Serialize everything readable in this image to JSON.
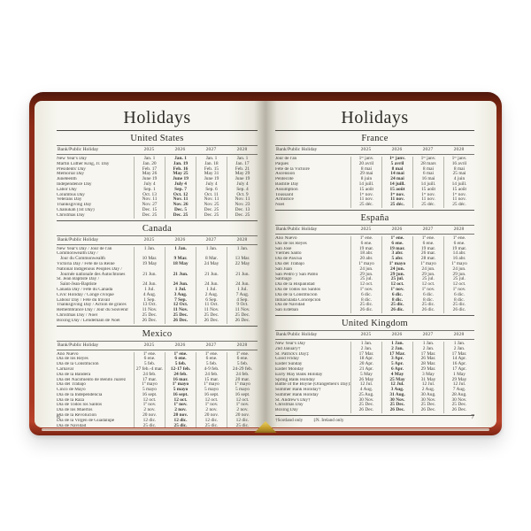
{
  "colors": {
    "cover_red": "#9c3220",
    "page_cream": "#f7f6f0",
    "gilt_gold": "#c9a22a"
  },
  "columns": {
    "name": "Bank/Public Holiday",
    "years": [
      "2025",
      "2026",
      "2027",
      "2028"
    ]
  },
  "left_page": {
    "title": "Holidays",
    "page_number": "6",
    "sections": [
      {
        "title": "United States",
        "rows": [
          {
            "name": "New Year's Day",
            "dates": [
              "Jan. 1",
              "Jan. 1",
              "Jan. 1",
              "Jan. 1"
            ]
          },
          {
            "name": "Martin Luther King, Jr. Day",
            "dates": [
              "Jan. 20",
              "Jan. 19",
              "Jan. 18",
              "Jan. 17"
            ]
          },
          {
            "name": "Presidents' Day",
            "dates": [
              "Feb. 17",
              "Feb. 16",
              "Feb. 15",
              "Feb. 21"
            ]
          },
          {
            "name": "Memorial Day",
            "dates": [
              "May 26",
              "May 25",
              "May 31",
              "May 29"
            ]
          },
          {
            "name": "Juneteenth",
            "dates": [
              "June 19",
              "June 19",
              "June 19",
              "June 19"
            ]
          },
          {
            "name": "Independence Day",
            "dates": [
              "July 4",
              "July 4",
              "July 4",
              "July 4"
            ]
          },
          {
            "name": "Labor Day",
            "dates": [
              "Sep. 1",
              "Sep. 7",
              "Sep. 6",
              "Sep. 4"
            ]
          },
          {
            "name": "Columbus Day",
            "dates": [
              "Oct. 13",
              "Oct. 12",
              "Oct. 11",
              "Oct. 9"
            ]
          },
          {
            "name": "Veterans Day",
            "dates": [
              "Nov. 11",
              "Nov. 11",
              "Nov. 11",
              "Nov. 11"
            ]
          },
          {
            "name": "Thanksgiving Day",
            "dates": [
              "Nov. 27",
              "Nov. 26",
              "Nov. 25",
              "Nov. 23"
            ]
          },
          {
            "name": "Chanukah (1st Day)",
            "dates": [
              "Dec. 15",
              "Dec. 5",
              "Dec. 25",
              "Dec. 13"
            ]
          },
          {
            "name": "Christmas Day",
            "dates": [
              "Dec. 25",
              "Dec. 25",
              "Dec. 25",
              "Dec. 25"
            ]
          }
        ]
      },
      {
        "title": "Canada",
        "rows": [
          {
            "name": "New Year's Day / Jour de l'an",
            "dates": [
              "1 Jan.",
              "1 Jan.",
              "1 Jan.",
              "1 Jan."
            ]
          },
          {
            "name": "Commonwealth Day /\nJour du Commonwealth",
            "dates": [
              "10 Mar.",
              "9 Mar.",
              "8 Mar.",
              "13 Mar."
            ]
          },
          {
            "name": "Victoria Day / Fête de la Reine",
            "dates": [
              "19 May",
              "18 May",
              "24 May",
              "22 May"
            ]
          },
          {
            "name": "National Indigenous Peoples Day /\nJournée nationale des Autochtones",
            "dates": [
              "21 Jun.",
              "21 Jun.",
              "21 Jun.",
              "21 Jun."
            ]
          },
          {
            "name": "St. Jean Baptiste Day /\nSaint-Jean-Baptiste",
            "dates": [
              "24 Jun.",
              "24 Jun.",
              "24 Jun.",
              "24 Jun."
            ]
          },
          {
            "name": "Canada Day / Fête du Canada",
            "dates": [
              "1 Jul.",
              "1 Jul.",
              "1 Jul.",
              "1 Jul."
            ]
          },
          {
            "name": "Civic Holiday / Congé civique",
            "dates": [
              "4 Aug.",
              "3 Aug.",
              "2 Aug.",
              "7 Aug."
            ]
          },
          {
            "name": "Labour Day / Fête du travail",
            "dates": [
              "1 Sep.",
              "7 Sep.",
              "6 Sep.",
              "4 Sep."
            ]
          },
          {
            "name": "Thanksgiving Day / Action de grâces",
            "dates": [
              "13 Oct.",
              "12 Oct.",
              "11 Oct.",
              "9 Oct."
            ]
          },
          {
            "name": "Remembrance Day / Jour du Souvenir",
            "dates": [
              "11 Nov.",
              "11 Nov.",
              "11 Nov.",
              "11 Nov."
            ]
          },
          {
            "name": "Christmas Day / Noël",
            "dates": [
              "25 Dec.",
              "25 Dec.",
              "25 Dec.",
              "25 Dec."
            ]
          },
          {
            "name": "Boxing Day / Lendemain de Noël",
            "dates": [
              "26 Dec.",
              "26 Dec.",
              "26 Dec.",
              "26 Dec."
            ]
          }
        ]
      },
      {
        "title": "Mexico",
        "rows": [
          {
            "name": "Año Nuevo",
            "dates": [
              "1º ene.",
              "1º ene.",
              "1º ene.",
              "1º ene."
            ]
          },
          {
            "name": "Día de los Reyes",
            "dates": [
              "6 ene.",
              "6 ene.",
              "6 ene.",
              "6 ene."
            ]
          },
          {
            "name": "Día de la Constitución",
            "dates": [
              "5 feb.",
              "5 feb.",
              "5 feb.",
              "5 feb."
            ]
          },
          {
            "name": "Carnaval",
            "dates": [
              "27 feb.-4 mar.",
              "12-17 feb.",
              "4-9 feb.",
              "24-29 feb."
            ]
          },
          {
            "name": "Día de la Bandera",
            "dates": [
              "24 feb.",
              "24 feb.",
              "24 feb.",
              "24 feb."
            ]
          },
          {
            "name": "Día del Nacimiento de Benito Juárez",
            "dates": [
              "17 mar.",
              "16 mar.",
              "15 mar.",
              "20 mar."
            ]
          },
          {
            "name": "Día del Trabajo",
            "dates": [
              "1º mayo",
              "1º mayo",
              "1º mayo",
              "1º mayo"
            ]
          },
          {
            "name": "Cinco de Mayo",
            "dates": [
              "5 mayo",
              "5 mayo",
              "5 mayo",
              "5 mayo"
            ]
          },
          {
            "name": "Día de la Independencia",
            "dates": [
              "16 sept.",
              "16 sept.",
              "16 sept.",
              "16 sept."
            ]
          },
          {
            "name": "Día de la Raza",
            "dates": [
              "12 oct.",
              "12 oct.",
              "12 oct.",
              "12 oct."
            ]
          },
          {
            "name": "Día de Todos los Santos",
            "dates": [
              "1º nov.",
              "1º nov.",
              "1º nov.",
              "1º nov."
            ]
          },
          {
            "name": "Día de los Muertos",
            "dates": [
              "2 nov.",
              "2 nov.",
              "2 nov.",
              "2 nov."
            ]
          },
          {
            "name": "Día de la Revolución",
            "dates": [
              "20 nov.",
              "20 nov.",
              "20 nov.",
              "20 nov."
            ]
          },
          {
            "name": "Día de la Virgen de Guadalupe",
            "dates": [
              "12 dic.",
              "12 dic.",
              "12 dic.",
              "12 dic."
            ]
          },
          {
            "name": "Día de Navidad",
            "dates": [
              "25 dic.",
              "25 dic.",
              "25 dic.",
              "25 dic."
            ]
          }
        ]
      }
    ]
  },
  "right_page": {
    "title": "Holidays",
    "page_number": "7",
    "footnotes": [
      "†Scotland only",
      "‡N. Ireland only"
    ],
    "sections": [
      {
        "title": "France",
        "rows": [
          {
            "name": "Jour de l'an",
            "dates": [
              "1ᵉʳ janv.",
              "1ᵉʳ janv.",
              "1ᵉʳ janv.",
              "1ᵉʳ janv."
            ]
          },
          {
            "name": "Pâques",
            "dates": [
              "20 avril",
              "5 avril",
              "28 mars",
              "16 avril"
            ]
          },
          {
            "name": "Fête de la Victoire",
            "dates": [
              "8 mai",
              "8 mai",
              "8 mai",
              "8 mai"
            ]
          },
          {
            "name": "Ascension",
            "dates": [
              "29 mai",
              "14 mai",
              "6 mai",
              "25 mai"
            ]
          },
          {
            "name": "Pentecôte",
            "dates": [
              "8 juin",
              "24 mai",
              "16 mai",
              "4 juin"
            ]
          },
          {
            "name": "Bastille Day",
            "dates": [
              "14 juill.",
              "14 juill.",
              "14 juill.",
              "14 juill."
            ]
          },
          {
            "name": "Assumption",
            "dates": [
              "15 août",
              "15 août",
              "15 août",
              "15 août"
            ]
          },
          {
            "name": "Toussaint",
            "dates": [
              "1ᵉʳ nov.",
              "1ᵉʳ nov.",
              "1ᵉʳ nov.",
              "1ᵉʳ nov."
            ]
          },
          {
            "name": "Armistice",
            "dates": [
              "11 nov.",
              "11 nov.",
              "11 nov.",
              "11 nov."
            ]
          },
          {
            "name": "Noël",
            "dates": [
              "25 déc.",
              "25 déc.",
              "25 déc.",
              "25 déc."
            ]
          }
        ]
      },
      {
        "title": "España",
        "rows": [
          {
            "name": "Año Nuevo",
            "dates": [
              "1º ene.",
              "1º ene.",
              "1º ene.",
              "1º ene."
            ]
          },
          {
            "name": "Día de los Reyes",
            "dates": [
              "6 ene.",
              "6 ene.",
              "6 ene.",
              "6 ene."
            ]
          },
          {
            "name": "San José",
            "dates": [
              "19 mar.",
              "19 mar.",
              "19 mar.",
              "19 mar."
            ]
          },
          {
            "name": "Viernes Santo",
            "dates": [
              "18 abr.",
              "3 abr.",
              "26 mar.",
              "14 abr."
            ]
          },
          {
            "name": "Día de Pascua",
            "dates": [
              "20 abr.",
              "5 abr.",
              "28 mar.",
              "16 abr."
            ]
          },
          {
            "name": "Día del Trabajo",
            "dates": [
              "1º mayo",
              "1º mayo",
              "1º mayo",
              "1º mayo"
            ]
          },
          {
            "name": "San Juan",
            "dates": [
              "24 jun.",
              "24 jun.",
              "24 jun.",
              "24 jun."
            ]
          },
          {
            "name": "San Pedro y San Pablo",
            "dates": [
              "29 jun.",
              "29 jun.",
              "29 jun.",
              "29 jun."
            ]
          },
          {
            "name": "Santiago",
            "dates": [
              "25 jul.",
              "25 jul.",
              "25 jul.",
              "25 jul."
            ]
          },
          {
            "name": "Día de la Hispanidad",
            "dates": [
              "12 oct.",
              "12 oct.",
              "12 oct.",
              "12 oct."
            ]
          },
          {
            "name": "Día de Todos los Santos",
            "dates": [
              "1º nov.",
              "1º nov.",
              "1º nov.",
              "1º nov."
            ]
          },
          {
            "name": "Día de la Constitución",
            "dates": [
              "6 dic.",
              "6 dic.",
              "6 dic.",
              "6 dic."
            ]
          },
          {
            "name": "Inmaculada Concepción",
            "dates": [
              "8 dic.",
              "8 dic.",
              "8 dic.",
              "8 dic."
            ]
          },
          {
            "name": "Día de Navidad",
            "dates": [
              "25 dic.",
              "25 dic.",
              "25 dic.",
              "25 dic."
            ]
          },
          {
            "name": "San Esteban",
            "dates": [
              "26 dic.",
              "26 dic.",
              "26 dic.",
              "26 dic."
            ]
          }
        ]
      },
      {
        "title": "United Kingdom",
        "rows": [
          {
            "name": "New Year's Day",
            "dates": [
              "1 Jan.",
              "1 Jan.",
              "1 Jan.",
              "1 Jan."
            ]
          },
          {
            "name": "2nd January†",
            "dates": [
              "2 Jan.",
              "2 Jan.",
              "2 Jan.",
              "2 Jan."
            ]
          },
          {
            "name": "St. Patrick's Day‡",
            "dates": [
              "17 Mar.",
              "17 Mar.",
              "17 Mar.",
              "17 Mar."
            ]
          },
          {
            "name": "Good Friday",
            "dates": [
              "18 Apr.",
              "3 Apr.",
              "26 Mar.",
              "14 Apr."
            ]
          },
          {
            "name": "Easter Sunday",
            "dates": [
              "20 Apr.",
              "5 Apr.",
              "28 Mar.",
              "16 Apr."
            ]
          },
          {
            "name": "Easter Monday",
            "dates": [
              "21 Apr.",
              "6 Apr.",
              "29 Mar.",
              "17 Apr."
            ]
          },
          {
            "name": "Early May Bank Holiday",
            "dates": [
              "5 May",
              "4 May",
              "3 May",
              "1 May"
            ]
          },
          {
            "name": "Spring Bank Holiday",
            "dates": [
              "26 May",
              "25 May",
              "31 May",
              "29 May"
            ]
          },
          {
            "name": "Battle of the Boyne (Orangemen's Day)‡",
            "dates": [
              "12 Jul.",
              "12 Jul.",
              "12 Jul.",
              "12 Jul."
            ]
          },
          {
            "name": "Summer Bank Holiday†",
            "dates": [
              "4 Aug.",
              "3 Aug.",
              "2 Aug.",
              "7 Aug."
            ]
          },
          {
            "name": "Summer Bank Holiday",
            "dates": [
              "25 Aug.",
              "31 Aug.",
              "30 Aug.",
              "28 Aug."
            ]
          },
          {
            "name": "St. Andrew's Day†",
            "dates": [
              "30 Nov.",
              "30 Nov.",
              "30 Nov.",
              "30 Nov."
            ]
          },
          {
            "name": "Christmas Day",
            "dates": [
              "25 Dec.",
              "25 Dec.",
              "25 Dec.",
              "25 Dec."
            ]
          },
          {
            "name": "Boxing Day",
            "dates": [
              "26 Dec.",
              "26 Dec.",
              "26 Dec.",
              "26 Dec."
            ]
          }
        ]
      }
    ]
  }
}
